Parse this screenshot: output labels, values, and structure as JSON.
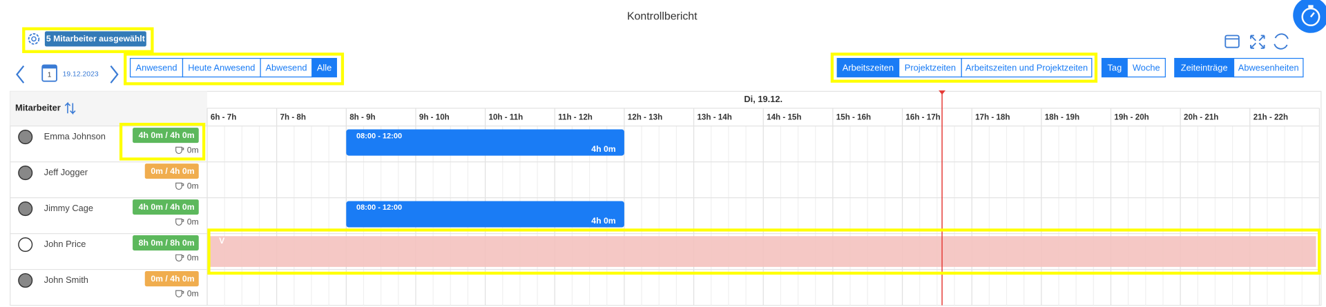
{
  "header": {
    "title": "Kontrollbericht",
    "selection": "5 Mitarbeiter ausgewählt"
  },
  "nav": {
    "date": "19.12.2023",
    "calendar_day": "1"
  },
  "filters": [
    {
      "label": "Anwesend",
      "active": false
    },
    {
      "label": "Heute Anwesend",
      "active": false
    },
    {
      "label": "Abwesend",
      "active": false
    },
    {
      "label": "Alle",
      "active": true
    }
  ],
  "view_modes": [
    {
      "label": "Arbeitszeiten",
      "active": true
    },
    {
      "label": "Projektzeiten",
      "active": false
    },
    {
      "label": "Arbeitszeiten und Projektzeiten",
      "active": false
    }
  ],
  "range": [
    {
      "label": "Tag",
      "active": true
    },
    {
      "label": "Woche",
      "active": false
    }
  ],
  "entry_types": [
    {
      "label": "Zeiteinträge",
      "active": true
    },
    {
      "label": "Abwesenheiten",
      "active": false
    }
  ],
  "table": {
    "employee_header": "Mitarbeiter",
    "day": "Di, 19.12.",
    "hours": [
      "6h - 7h",
      "7h - 8h",
      "8h - 9h",
      "9h - 10h",
      "10h - 11h",
      "11h - 12h",
      "12h - 13h",
      "13h - 14h",
      "14h - 15h",
      "15h - 16h",
      "16h - 17h",
      "17h - 18h",
      "18h - 19h",
      "19h - 20h",
      "20h - 21h",
      "21h - 22h"
    ],
    "rows": [
      {
        "name": "Emma Johnson",
        "avatar_color": "#888888",
        "hours": "4h 0m / 4h 0m",
        "hours_color": "#5cb85c",
        "break": "0m",
        "entries": [
          {
            "time": "08:00 - 12:00",
            "duration": "4h 0m"
          }
        ]
      },
      {
        "name": "Jeff Jogger",
        "avatar_color": "#888888",
        "hours": "0m / 4h 0m",
        "hours_color": "#f0ad4e",
        "break": "0m",
        "entries": []
      },
      {
        "name": "Jimmy Cage",
        "avatar_color": "#888888",
        "hours": "4h 0m / 4h 0m",
        "hours_color": "#5cb85c",
        "break": "0m",
        "entries": [
          {
            "time": "08:00 - 12:00",
            "duration": "4h 0m"
          }
        ]
      },
      {
        "name": "John Price",
        "avatar_color": "#ffffff",
        "hours": "8h 0m / 8h 0m",
        "hours_color": "#5cb85c",
        "break": "0m",
        "entries": [],
        "absence": "V"
      },
      {
        "name": "John Smith",
        "avatar_color": "#888888",
        "hours": "0m / 4h 0m",
        "hours_color": "#f0ad4e",
        "break": "0m",
        "entries": []
      }
    ]
  }
}
